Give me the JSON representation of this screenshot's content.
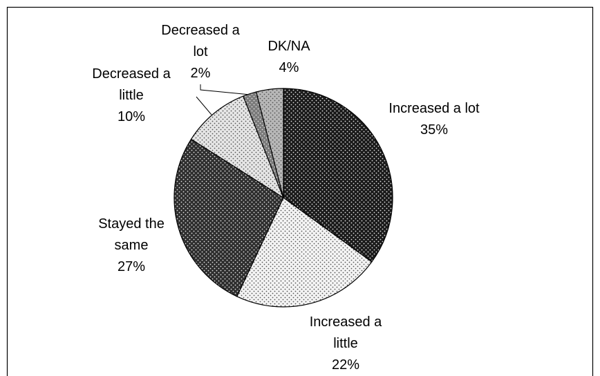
{
  "chart_data": {
    "type": "pie",
    "categories": [
      "Increased a lot",
      "Increased a little",
      "Stayed the same",
      "Decreased a little",
      "Decreased a lot",
      "DK/NA"
    ],
    "values": [
      35,
      22,
      27,
      10,
      2,
      4
    ],
    "value_labels": [
      "35%",
      "22%",
      "27%",
      "10%",
      "2%",
      "4%"
    ],
    "colors": [
      "#1a1a1a",
      "#f4f4f4",
      "#2e2e2e",
      "#e6e6e6",
      "#7a7a7a",
      "#b8b8b8"
    ]
  }
}
